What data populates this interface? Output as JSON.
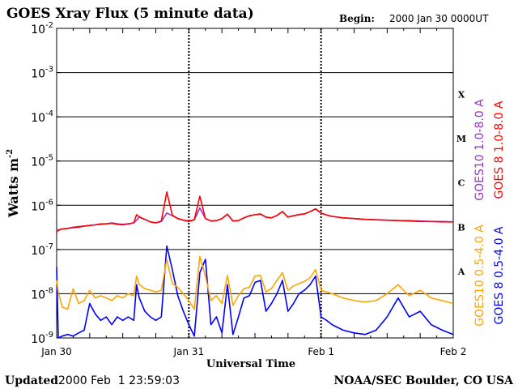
{
  "header": {
    "title": "GOES Xray Flux (5 minute data)",
    "begin_label": "Begin:",
    "begin_value": "2000 Jan 30 0000UT"
  },
  "footer": {
    "updated_label": "Updated",
    "updated_value": "2000 Feb  1 23:59:03",
    "credit": "NOAA/SEC Boulder, CO USA"
  },
  "chart_data": {
    "type": "line",
    "title": "GOES Xray Flux (5 minute data)",
    "xlabel": "Universal Time",
    "ylabel": "Watts m",
    "ylabel_sup": "-2",
    "y_scale": "log",
    "ylim": [
      1e-09,
      0.01
    ],
    "xlim_hours": [
      0,
      72
    ],
    "x_tick_labels": [
      "Jan 30",
      "Jan 31",
      "Feb 1",
      "Feb 2"
    ],
    "y_tick_labels": [
      {
        "base": "10",
        "exp": "-9",
        "value": 1e-09
      },
      {
        "base": "10",
        "exp": "-8",
        "value": 1e-08
      },
      {
        "base": "10",
        "exp": "-7",
        "value": 1e-07
      },
      {
        "base": "10",
        "exp": "-6",
        "value": 1e-06
      },
      {
        "base": "10",
        "exp": "-5",
        "value": 1e-05
      },
      {
        "base": "10",
        "exp": "-4",
        "value": 0.0001
      },
      {
        "base": "10",
        "exp": "-3",
        "value": 0.001
      },
      {
        "base": "10",
        "exp": "-2",
        "value": 0.01
      }
    ],
    "flare_classes": [
      {
        "label": "A",
        "value": 3.2e-08
      },
      {
        "label": "B",
        "value": 3.2e-07
      },
      {
        "label": "C",
        "value": 3.2e-06
      },
      {
        "label": "M",
        "value": 3.2e-05
      },
      {
        "label": "X",
        "value": 0.00032
      }
    ],
    "grid": true,
    "legend_placement": "right, vertical",
    "colors": {
      "goes10_long": "#9933cc",
      "goes8_long": "#ff0000",
      "goes10_short": "#ffa500",
      "goes8_short": "#0000ff"
    },
    "series": [
      {
        "name": "GOES10 1.0-8.0 A",
        "color": "#9933cc",
        "x": [
          0,
          0.3,
          1,
          2,
          3,
          4,
          5,
          6,
          7,
          8,
          9,
          10,
          11,
          12,
          13,
          14,
          14.5,
          15,
          16,
          17,
          18,
          19,
          20,
          21,
          22,
          23,
          24,
          25,
          26,
          27,
          28,
          29,
          30,
          31,
          32,
          33,
          34,
          35,
          36,
          37,
          38,
          39,
          40,
          41,
          42,
          43,
          44,
          45,
          46,
          47,
          48,
          49,
          50,
          52,
          54,
          56,
          58,
          60,
          62,
          64,
          66,
          68,
          70,
          72
        ],
        "y": [
          2.5e-07,
          2.8e-07,
          2.9e-07,
          3e-07,
          3.2e-07,
          3.3e-07,
          3.4e-07,
          3.5e-07,
          3.6e-07,
          3.8e-07,
          3.8e-07,
          4e-07,
          3.8e-07,
          3.7e-07,
          3.8e-07,
          4e-07,
          4.6e-07,
          5.4e-07,
          4.8e-07,
          4.2e-07,
          4e-07,
          4.3e-07,
          6.7e-07,
          5.8e-07,
          5e-07,
          4.6e-07,
          4.4e-07,
          4.7e-07,
          8.7e-07,
          5e-07,
          4.4e-07,
          4.5e-07,
          5e-07,
          6.3e-07,
          4.4e-07,
          4.5e-07,
          5.2e-07,
          5.8e-07,
          6.1e-07,
          6.4e-07,
          5.4e-07,
          5.2e-07,
          5.9e-07,
          7.2e-07,
          5.4e-07,
          5.8e-07,
          6.2e-07,
          6.4e-07,
          7.2e-07,
          8.3e-07,
          6.6e-07,
          6e-07,
          5.6e-07,
          5.2e-07,
          5e-07,
          4.8e-07,
          4.7e-07,
          4.6e-07,
          4.5e-07,
          4.5e-07,
          4.4e-07,
          4.3e-07,
          4.3e-07,
          4.2e-07
        ]
      },
      {
        "name": "GOES 8 1.0-8.0 A",
        "color": "#ff0000",
        "x": [
          0,
          0.3,
          1,
          2,
          3,
          4,
          5,
          6,
          7,
          8,
          9,
          10,
          11,
          12,
          13,
          14,
          14.5,
          15,
          16,
          17,
          18,
          19,
          20,
          21,
          22,
          23,
          24,
          25,
          26,
          27,
          28,
          29,
          30,
          31,
          32,
          33,
          34,
          35,
          36,
          37,
          38,
          39,
          40,
          41,
          42,
          43,
          44,
          45,
          46,
          47,
          48,
          49,
          50,
          52,
          54,
          56,
          58,
          60,
          62,
          64,
          66,
          68,
          70,
          72
        ],
        "y": [
          2.5e-07,
          2.7e-07,
          2.9e-07,
          3e-07,
          3.1e-07,
          3.2e-07,
          3.4e-07,
          3.5e-07,
          3.6e-07,
          3.7e-07,
          3.8e-07,
          3.9e-07,
          3.7e-07,
          3.6e-07,
          3.8e-07,
          4e-07,
          6.1e-07,
          5.5e-07,
          4.8e-07,
          4.2e-07,
          4e-07,
          4.4e-07,
          2e-06,
          6e-07,
          5e-07,
          4.6e-07,
          4.3e-07,
          4.7e-07,
          1.6e-06,
          5e-07,
          4.4e-07,
          4.5e-07,
          5e-07,
          6.3e-07,
          4.4e-07,
          4.5e-07,
          5.2e-07,
          5.8e-07,
          6.1e-07,
          6.3e-07,
          5.4e-07,
          5.2e-07,
          5.9e-07,
          7.2e-07,
          5.4e-07,
          5.8e-07,
          6.1e-07,
          6.4e-07,
          7.2e-07,
          8.3e-07,
          6.7e-07,
          6e-07,
          5.6e-07,
          5.2e-07,
          5e-07,
          4.8e-07,
          4.7e-07,
          4.6e-07,
          4.5e-07,
          4.4e-07,
          4.3e-07,
          4.3e-07,
          4.2e-07,
          4.2e-07
        ]
      },
      {
        "name": "GOES10 0.5-4.0 A",
        "color": "#ffa500",
        "x": [
          0,
          0.3,
          1,
          2,
          3,
          4,
          5,
          6,
          7,
          8,
          9,
          10,
          11,
          12,
          13,
          14,
          14.5,
          15,
          16,
          17,
          18,
          19,
          20,
          21,
          22,
          23,
          24,
          25,
          26,
          27,
          28,
          29,
          30,
          31,
          32,
          33,
          34,
          35,
          36,
          37,
          38,
          39,
          40,
          41,
          42,
          43,
          44,
          45,
          46,
          47,
          48,
          49,
          50,
          52,
          54,
          56,
          58,
          60,
          62,
          64,
          66,
          68,
          70,
          72
        ],
        "y": [
          2e-08,
          1.1e-08,
          5e-09,
          4.5e-09,
          1.3e-08,
          6e-09,
          7e-09,
          1.2e-08,
          8e-09,
          9e-09,
          8e-09,
          7e-09,
          9e-09,
          8e-09,
          1e-08,
          9e-09,
          2.5e-08,
          1.6e-08,
          1.3e-08,
          1.2e-08,
          1.1e-08,
          1.2e-08,
          6e-08,
          1.7e-08,
          1.4e-08,
          1e-08,
          7e-09,
          4.5e-09,
          7e-08,
          2.5e-08,
          7e-09,
          9e-09,
          6e-09,
          2.6e-08,
          5.5e-09,
          9e-09,
          1.3e-08,
          1.4e-08,
          2.5e-08,
          2.6e-08,
          1.1e-08,
          1.3e-08,
          2e-08,
          3e-08,
          1.2e-08,
          1.5e-08,
          1.7e-08,
          1.9e-08,
          2.3e-08,
          3.5e-08,
          1.2e-08,
          1.1e-08,
          1e-08,
          8e-09,
          7e-09,
          6.5e-09,
          7e-09,
          1e-08,
          1.6e-08,
          9e-09,
          1.2e-08,
          8e-09,
          7e-09,
          6e-09
        ]
      },
      {
        "name": "GOES 8 0.5-4.0 A",
        "color": "#0000ff",
        "x": [
          0,
          0.3,
          1,
          2,
          3,
          4,
          5,
          6,
          7,
          8,
          9,
          10,
          11,
          12,
          13,
          14,
          14.5,
          15,
          16,
          17,
          18,
          19,
          20,
          21,
          22,
          23,
          24,
          25,
          26,
          27,
          28,
          29,
          30,
          31,
          32,
          33,
          34,
          35,
          36,
          37,
          38,
          39,
          40,
          41,
          42,
          43,
          44,
          45,
          46,
          47,
          48,
          49,
          50,
          52,
          54,
          56,
          58,
          60,
          62,
          64,
          66,
          68,
          70,
          72
        ],
        "y": [
          4e-08,
          1e-09,
          1.1e-09,
          1.2e-09,
          1.1e-09,
          1.3e-09,
          1.5e-09,
          6e-09,
          3.5e-09,
          2.5e-09,
          3e-09,
          2e-09,
          3e-09,
          2.5e-09,
          3e-09,
          2.5e-09,
          1.6e-08,
          8e-09,
          4e-09,
          3e-09,
          2.5e-09,
          3e-09,
          1.2e-07,
          3.5e-08,
          9e-09,
          4e-09,
          2e-09,
          1.1e-09,
          3e-08,
          6e-08,
          2e-09,
          3e-09,
          1.3e-09,
          1.6e-08,
          1.2e-09,
          3e-09,
          8e-09,
          9e-09,
          1.8e-08,
          2e-08,
          4e-09,
          6e-09,
          1e-08,
          2e-08,
          4e-09,
          6e-09,
          1e-08,
          1.2e-08,
          1.6e-08,
          2.5e-08,
          3e-09,
          2.5e-09,
          2e-09,
          1.5e-09,
          1.3e-09,
          1.2e-09,
          1.5e-09,
          3e-09,
          8e-09,
          3e-09,
          4e-09,
          2e-09,
          1.5e-09,
          1.2e-09
        ]
      }
    ]
  }
}
